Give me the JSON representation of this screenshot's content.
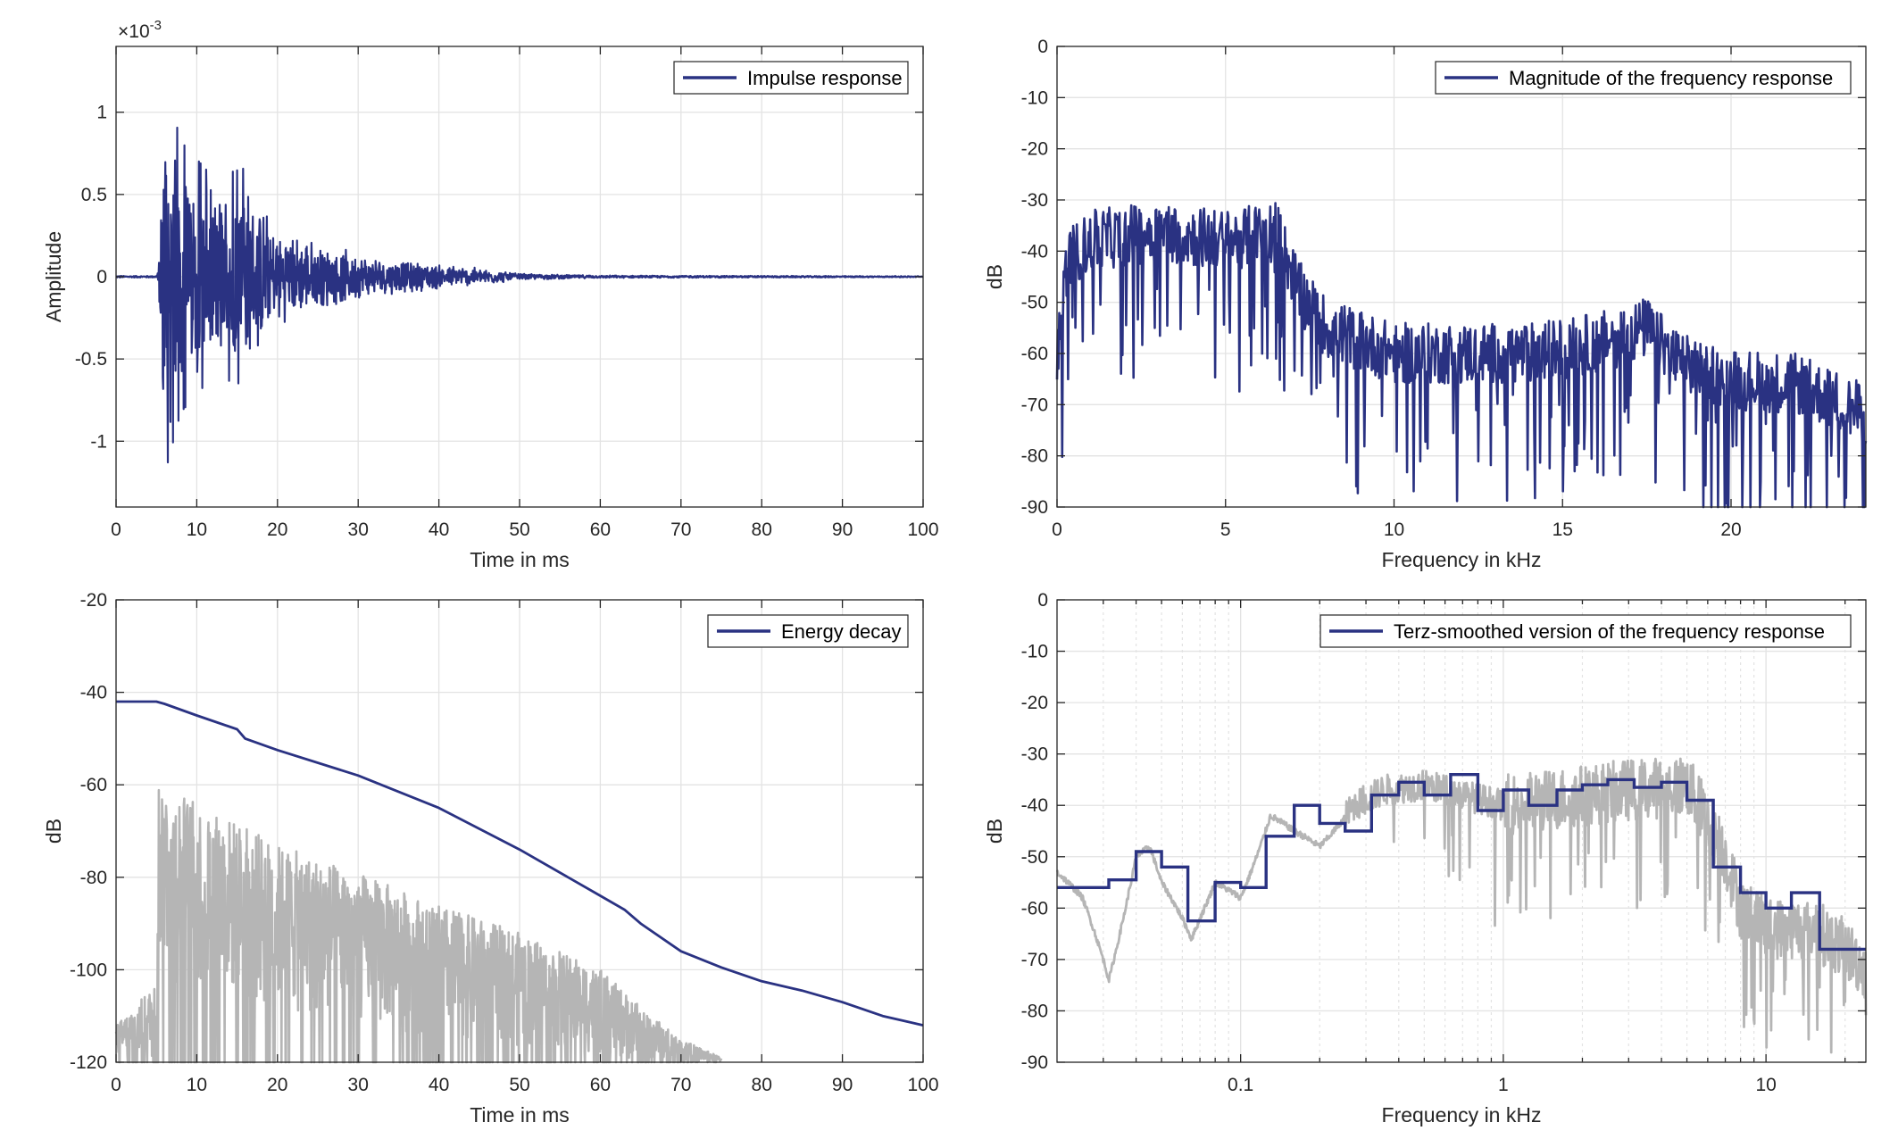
{
  "colors": {
    "primary": "#2a3282",
    "secondary": "#b5b5b5",
    "axis": "#262626",
    "grid": "#e3e3e3"
  },
  "chart_data": [
    {
      "id": "impulse",
      "type": "line",
      "xlabel": "Time in ms",
      "ylabel": "Amplitude",
      "multiplier": "×10",
      "multiplier_exp": "-3",
      "xlim": [
        0,
        100
      ],
      "ylim": [
        -1.4,
        1.4
      ],
      "xticks": [
        0,
        10,
        20,
        30,
        40,
        50,
        60,
        70,
        80,
        90,
        100
      ],
      "xtick_labels": [
        "0",
        "10",
        "20",
        "30",
        "40",
        "50",
        "60",
        "70",
        "80",
        "90",
        "100"
      ],
      "yticks": [
        -1,
        -0.5,
        0,
        0.5,
        1
      ],
      "ytick_labels": [
        "-1",
        "-0.5",
        "0",
        "0.5",
        "1"
      ],
      "grid": true,
      "legend": "top-right",
      "series": [
        {
          "name": "Impulse response",
          "color": "#2a3282",
          "envelope": {
            "x": [
              0,
              5,
              5.4,
              6,
              8,
              12,
              16,
              20,
              26,
              32,
              40,
              46,
              50,
              60,
              100
            ],
            "y": [
              0.006,
              0.006,
              0.15,
              1.1,
              0.75,
              0.55,
              0.6,
              0.3,
              0.2,
              0.12,
              0.08,
              0.05,
              0.02,
              0.008,
              0.004
            ]
          }
        }
      ]
    },
    {
      "id": "magnitude",
      "type": "line",
      "xlabel": "Frequency in kHz",
      "ylabel": "dB",
      "xlim": [
        0,
        24
      ],
      "ylim": [
        -90,
        0
      ],
      "xticks": [
        0,
        5,
        10,
        15,
        20
      ],
      "xtick_labels": [
        "0",
        "5",
        "10",
        "15",
        "20"
      ],
      "yticks": [
        -90,
        -80,
        -70,
        -60,
        -50,
        -40,
        -30,
        -20,
        -10,
        0
      ],
      "ytick_labels": [
        "-90",
        "-80",
        "-70",
        "-60",
        "-50",
        "-40",
        "-30",
        "-20",
        "-10",
        "0"
      ],
      "grid": true,
      "legend": "top-right",
      "series": [
        {
          "name": "Magnitude of the frequency response",
          "color": "#2a3282",
          "trend": {
            "x": [
              0,
              0.3,
              1,
              3,
              5,
              6.5,
              7.2,
              8,
              10,
              12,
              14,
              16,
              17.5,
              18.5,
              20,
              22,
              24
            ],
            "y": [
              -60,
              -42,
              -38,
              -36,
              -38,
              -36,
              -48,
              -55,
              -60,
              -60,
              -60,
              -58,
              -55,
              -62,
              -65,
              -66,
              -72
            ]
          }
        }
      ]
    },
    {
      "id": "energy",
      "type": "line",
      "xlabel": "Time in ms",
      "ylabel": "dB",
      "xlim": [
        0,
        100
      ],
      "ylim": [
        -120,
        -20
      ],
      "xticks": [
        0,
        10,
        20,
        30,
        40,
        50,
        60,
        70,
        80,
        90,
        100
      ],
      "xtick_labels": [
        "0",
        "10",
        "20",
        "30",
        "40",
        "50",
        "60",
        "70",
        "80",
        "90",
        "100"
      ],
      "yticks": [
        -120,
        -100,
        -80,
        -60,
        -40,
        -20
      ],
      "ytick_labels": [
        "-120",
        "-100",
        "-80",
        "-60",
        "-40",
        "-20"
      ],
      "grid": true,
      "legend": "top-right",
      "series": [
        {
          "name": "Energy decay",
          "color": "#2a3282",
          "x": [
            0,
            5,
            6,
            10,
            15,
            16,
            20,
            30,
            40,
            50,
            60,
            63,
            65,
            70,
            75,
            80,
            85,
            90,
            95,
            100
          ],
          "y": [
            -42,
            -42,
            -42.5,
            -45,
            -48,
            -50,
            -52.5,
            -58,
            -65,
            -74,
            -84,
            -87,
            -90,
            -96,
            -99.5,
            -102.5,
            -104.5,
            -107,
            -110,
            -112
          ]
        },
        {
          "name": "",
          "color": "#b5b5b5",
          "envelope": {
            "x": [
              0,
              5,
              5.2,
              10,
              15,
              20,
              30,
              40,
              50,
              60,
              65,
              70,
              75
            ],
            "top": [
              -112,
              -103,
              -58,
              -64,
              -68,
              -73,
              -79,
              -86,
              -92,
              -100,
              -108,
              -115,
              -119
            ],
            "bottom": [
              -120,
              -120,
              -102,
              -106,
              -108,
              -110,
              -112,
              -115,
              -117,
              -119,
              -120,
              -120,
              -120
            ]
          }
        }
      ]
    },
    {
      "id": "terz",
      "type": "line",
      "xlabel": "Frequency in kHz",
      "ylabel": "dB",
      "xscale": "log",
      "xlim": [
        0.02,
        24
      ],
      "ylim": [
        -90,
        0
      ],
      "xticks": [
        0.1,
        1,
        10
      ],
      "xtick_labels": [
        "0.1",
        "1",
        "10"
      ],
      "yticks": [
        -90,
        -80,
        -70,
        -60,
        -50,
        -40,
        -30,
        -20,
        -10,
        0
      ],
      "ytick_labels": [
        "-90",
        "-80",
        "-70",
        "-60",
        "-50",
        "-40",
        "-30",
        "-20",
        "-10",
        "0"
      ],
      "grid": true,
      "legend": "top-right",
      "series": [
        {
          "name": "Terz-smoothed version of the frequency response",
          "color": "#2a3282",
          "step_edges": [
            0.02,
            0.0315,
            0.04,
            0.05,
            0.063,
            0.08,
            0.1,
            0.125,
            0.16,
            0.2,
            0.25,
            0.315,
            0.4,
            0.5,
            0.63,
            0.8,
            1,
            1.25,
            1.6,
            2,
            2.5,
            3.15,
            4,
            5,
            6.3,
            8,
            10,
            12.5,
            16,
            20,
            24
          ],
          "step_values": [
            -56,
            -54.5,
            -49,
            -52,
            -62.5,
            -55,
            -56,
            -46,
            -40,
            -43.5,
            -45,
            -38,
            -35.5,
            -38,
            -34,
            -41,
            -37,
            -40,
            -37,
            -36,
            -35,
            -36.5,
            -35.5,
            -39,
            -52,
            -57,
            -60,
            -57,
            -68,
            -68
          ]
        },
        {
          "name": "",
          "color": "#b5b5b5",
          "trend": {
            "x": [
              0.02,
              0.025,
              0.03,
              0.0315,
              0.04,
              0.045,
              0.05,
              0.06,
              0.065,
              0.07,
              0.08,
              0.1,
              0.13,
              0.16,
              0.2,
              0.27,
              0.35,
              0.5,
              0.7,
              1,
              2,
              3,
              5,
              7,
              8,
              10,
              15,
              20,
              24
            ],
            "y": [
              -53,
              -58,
              -70,
              -74,
              -50,
              -48,
              -55,
              -62,
              -66,
              -62,
              -55,
              -58,
              -42,
              -45,
              -48,
              -40,
              -37,
              -36,
              -38,
              -40,
              -38,
              -37,
              -36,
              -50,
              -60,
              -64,
              -64,
              -68,
              -72
            ]
          }
        }
      ]
    }
  ]
}
